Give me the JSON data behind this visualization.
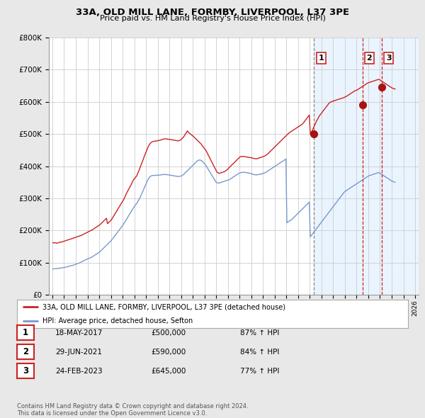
{
  "title": "33A, OLD MILL LANE, FORMBY, LIVERPOOL, L37 3PE",
  "subtitle": "Price paid vs. HM Land Registry's House Price Index (HPI)",
  "ylim": [
    0,
    800000
  ],
  "yticks": [
    0,
    100000,
    200000,
    300000,
    400000,
    500000,
    600000,
    700000,
    800000
  ],
  "ytick_labels": [
    "£0",
    "£100K",
    "£200K",
    "£300K",
    "£400K",
    "£500K",
    "£600K",
    "£700K",
    "£800K"
  ],
  "background_color": "#e8e8e8",
  "plot_bg_color": "#ffffff",
  "grid_color": "#cccccc",
  "red_line_color": "#cc2222",
  "blue_line_color": "#7799cc",
  "shade_color": "#ddeeff",
  "sale_marker_color": "#aa1111",
  "dashed_line_color_1": "#888888",
  "dashed_line_color_23": "#cc2222",
  "legend_label_red": "33A, OLD MILL LANE, FORMBY, LIVERPOOL, L37 3PE (detached house)",
  "legend_label_blue": "HPI: Average price, detached house, Sefton",
  "footnote": "Contains HM Land Registry data © Crown copyright and database right 2024.\nThis data is licensed under the Open Government Licence v3.0.",
  "sales": [
    {
      "num": 1,
      "date_label": "18-MAY-2017",
      "price": 500000,
      "pct": "87%",
      "x_year": 2017.37
    },
    {
      "num": 2,
      "date_label": "29-JUN-2021",
      "price": 590000,
      "pct": "84%",
      "x_year": 2021.49
    },
    {
      "num": 3,
      "date_label": "24-FEB-2023",
      "price": 645000,
      "pct": "77%",
      "x_year": 2023.15
    }
  ],
  "xlim": [
    1994.7,
    2026.3
  ],
  "hpi_x": [
    1995.04,
    1995.12,
    1995.21,
    1995.29,
    1995.37,
    1995.46,
    1995.54,
    1995.62,
    1995.71,
    1995.79,
    1995.87,
    1995.96,
    1996.04,
    1996.12,
    1996.21,
    1996.29,
    1996.37,
    1996.46,
    1996.54,
    1996.62,
    1996.71,
    1996.79,
    1996.87,
    1996.96,
    1997.04,
    1997.12,
    1997.21,
    1997.29,
    1997.37,
    1997.46,
    1997.54,
    1997.62,
    1997.71,
    1997.79,
    1997.87,
    1997.96,
    1998.04,
    1998.12,
    1998.21,
    1998.29,
    1998.37,
    1998.46,
    1998.54,
    1998.62,
    1998.71,
    1998.79,
    1998.87,
    1998.96,
    1999.04,
    1999.12,
    1999.21,
    1999.29,
    1999.37,
    1999.46,
    1999.54,
    1999.62,
    1999.71,
    1999.79,
    1999.87,
    1999.96,
    2000.04,
    2000.12,
    2000.21,
    2000.29,
    2000.37,
    2000.46,
    2000.54,
    2000.62,
    2000.71,
    2000.79,
    2000.87,
    2000.96,
    2001.04,
    2001.12,
    2001.21,
    2001.29,
    2001.37,
    2001.46,
    2001.54,
    2001.62,
    2001.71,
    2001.79,
    2001.87,
    2001.96,
    2002.04,
    2002.12,
    2002.21,
    2002.29,
    2002.37,
    2002.46,
    2002.54,
    2002.62,
    2002.71,
    2002.79,
    2002.87,
    2002.96,
    2003.04,
    2003.12,
    2003.21,
    2003.29,
    2003.37,
    2003.46,
    2003.54,
    2003.62,
    2003.71,
    2003.79,
    2003.87,
    2003.96,
    2004.04,
    2004.12,
    2004.21,
    2004.29,
    2004.37,
    2004.46,
    2004.54,
    2004.62,
    2004.71,
    2004.79,
    2004.87,
    2004.96,
    2005.04,
    2005.12,
    2005.21,
    2005.29,
    2005.37,
    2005.46,
    2005.54,
    2005.62,
    2005.71,
    2005.79,
    2005.87,
    2005.96,
    2006.04,
    2006.12,
    2006.21,
    2006.29,
    2006.37,
    2006.46,
    2006.54,
    2006.62,
    2006.71,
    2006.79,
    2006.87,
    2006.96,
    2007.04,
    2007.12,
    2007.21,
    2007.29,
    2007.37,
    2007.46,
    2007.54,
    2007.62,
    2007.71,
    2007.79,
    2007.87,
    2007.96,
    2008.04,
    2008.12,
    2008.21,
    2008.29,
    2008.37,
    2008.46,
    2008.54,
    2008.62,
    2008.71,
    2008.79,
    2008.87,
    2008.96,
    2009.04,
    2009.12,
    2009.21,
    2009.29,
    2009.37,
    2009.46,
    2009.54,
    2009.62,
    2009.71,
    2009.79,
    2009.87,
    2009.96,
    2010.04,
    2010.12,
    2010.21,
    2010.29,
    2010.37,
    2010.46,
    2010.54,
    2010.62,
    2010.71,
    2010.79,
    2010.87,
    2010.96,
    2011.04,
    2011.12,
    2011.21,
    2011.29,
    2011.37,
    2011.46,
    2011.54,
    2011.62,
    2011.71,
    2011.79,
    2011.87,
    2011.96,
    2012.04,
    2012.12,
    2012.21,
    2012.29,
    2012.37,
    2012.46,
    2012.54,
    2012.62,
    2012.71,
    2012.79,
    2012.87,
    2012.96,
    2013.04,
    2013.12,
    2013.21,
    2013.29,
    2013.37,
    2013.46,
    2013.54,
    2013.62,
    2013.71,
    2013.79,
    2013.87,
    2013.96,
    2014.04,
    2014.12,
    2014.21,
    2014.29,
    2014.37,
    2014.46,
    2014.54,
    2014.62,
    2014.71,
    2014.79,
    2014.87,
    2014.96,
    2015.04,
    2015.12,
    2015.21,
    2015.29,
    2015.37,
    2015.46,
    2015.54,
    2015.62,
    2015.71,
    2015.79,
    2015.87,
    2015.96,
    2016.04,
    2016.12,
    2016.21,
    2016.29,
    2016.37,
    2016.46,
    2016.54,
    2016.62,
    2016.71,
    2016.79,
    2016.87,
    2016.96,
    2017.04,
    2017.12,
    2017.21,
    2017.29,
    2017.37,
    2017.46,
    2017.54,
    2017.62,
    2017.71,
    2017.79,
    2017.87,
    2017.96,
    2018.04,
    2018.12,
    2018.21,
    2018.29,
    2018.37,
    2018.46,
    2018.54,
    2018.62,
    2018.71,
    2018.79,
    2018.87,
    2018.96,
    2019.04,
    2019.12,
    2019.21,
    2019.29,
    2019.37,
    2019.46,
    2019.54,
    2019.62,
    2019.71,
    2019.79,
    2019.87,
    2019.96,
    2020.04,
    2020.12,
    2020.21,
    2020.29,
    2020.37,
    2020.46,
    2020.54,
    2020.62,
    2020.71,
    2020.79,
    2020.87,
    2020.96,
    2021.04,
    2021.12,
    2021.21,
    2021.29,
    2021.37,
    2021.46,
    2021.54,
    2021.62,
    2021.71,
    2021.79,
    2021.87,
    2021.96,
    2022.04,
    2022.12,
    2022.21,
    2022.29,
    2022.37,
    2022.46,
    2022.54,
    2022.62,
    2022.71,
    2022.79,
    2022.87,
    2022.96,
    2023.04,
    2023.12,
    2023.21,
    2023.29,
    2023.37,
    2023.46,
    2023.54,
    2023.62,
    2023.71,
    2023.79,
    2023.87,
    2023.96,
    2024.04,
    2024.12,
    2024.21,
    2024.29
  ],
  "hpi_y": [
    80000,
    80500,
    81000,
    81500,
    81000,
    81500,
    82000,
    82000,
    83000,
    83500,
    84000,
    84500,
    85000,
    85500,
    86000,
    87000,
    88000,
    89000,
    90000,
    90500,
    91000,
    92000,
    93000,
    94000,
    95000,
    96000,
    97000,
    98500,
    100000,
    101500,
    103000,
    104500,
    106000,
    107500,
    109000,
    110500,
    112000,
    113000,
    114000,
    115500,
    117000,
    119000,
    121000,
    123000,
    125000,
    127000,
    129000,
    131000,
    133000,
    136000,
    139000,
    142000,
    145000,
    148000,
    151000,
    154000,
    157000,
    160000,
    163000,
    166000,
    169000,
    173000,
    177000,
    181000,
    185000,
    189000,
    193000,
    197000,
    201000,
    205000,
    209000,
    213000,
    217000,
    222000,
    227000,
    232000,
    237000,
    242000,
    247000,
    252000,
    257000,
    262000,
    267000,
    272000,
    276000,
    280000,
    284000,
    289000,
    294000,
    300000,
    306000,
    313000,
    320000,
    327000,
    334000,
    341000,
    348000,
    355000,
    361000,
    365000,
    368000,
    370000,
    371000,
    371000,
    371000,
    371500,
    371500,
    372000,
    372000,
    372000,
    372500,
    373000,
    373500,
    374000,
    374000,
    374000,
    374000,
    373500,
    373000,
    372500,
    372000,
    371500,
    371000,
    370500,
    370000,
    369500,
    369000,
    368500,
    368000,
    368000,
    368500,
    369000,
    370000,
    372000,
    374000,
    377000,
    380000,
    383000,
    386000,
    389000,
    392000,
    395000,
    398000,
    401000,
    404000,
    407000,
    410000,
    413000,
    416000,
    418000,
    419000,
    419000,
    418000,
    416000,
    413000,
    410000,
    406000,
    402000,
    397000,
    392000,
    387000,
    382000,
    377000,
    372000,
    367000,
    362000,
    357000,
    352000,
    349000,
    348000,
    347000,
    348000,
    349000,
    350000,
    351000,
    352000,
    353000,
    354000,
    355000,
    356000,
    357000,
    358000,
    360000,
    362000,
    364000,
    366000,
    368000,
    370000,
    372000,
    374000,
    376000,
    378000,
    379000,
    380000,
    380500,
    381000,
    381000,
    380500,
    380000,
    379500,
    379000,
    378500,
    378000,
    377500,
    376000,
    375000,
    374000,
    373500,
    373000,
    373000,
    373500,
    374000,
    374500,
    375000,
    376000,
    377000,
    378000,
    379000,
    380000,
    382000,
    384000,
    386000,
    388000,
    390000,
    392000,
    394000,
    396000,
    398000,
    400000,
    402000,
    404000,
    406000,
    408000,
    410000,
    412000,
    414000,
    416000,
    418000,
    420000,
    422000,
    224000,
    226000,
    228000,
    230000,
    232000,
    234000,
    237000,
    240000,
    243000,
    246000,
    249000,
    252000,
    255000,
    258000,
    261000,
    264000,
    267000,
    270000,
    273000,
    276000,
    279000,
    282000,
    285000,
    288000,
    180000,
    184000,
    188000,
    192000,
    196000,
    200000,
    204000,
    208000,
    212000,
    216000,
    220000,
    224000,
    228000,
    232000,
    236000,
    240000,
    244000,
    248000,
    252000,
    256000,
    260000,
    264000,
    268000,
    272000,
    276000,
    280000,
    284000,
    288000,
    292000,
    296000,
    300000,
    304000,
    308000,
    312000,
    316000,
    320000,
    322000,
    324000,
    326000,
    328000,
    330000,
    332000,
    334000,
    336000,
    338000,
    340000,
    342000,
    344000,
    346000,
    348000,
    350000,
    352000,
    354000,
    356000,
    358000,
    360000,
    362000,
    364000,
    366000,
    368000,
    370000,
    371000,
    372000,
    373000,
    374000,
    375000,
    376000,
    377000,
    378000,
    379000,
    380000,
    379000,
    377000,
    375000,
    373000,
    371000,
    369000,
    367000,
    365000,
    363000,
    361000,
    359000,
    357000,
    355000,
    353000,
    352000,
    351000,
    350000
  ],
  "red_x": [
    1995.04,
    1995.12,
    1995.21,
    1995.29,
    1995.37,
    1995.46,
    1995.54,
    1995.62,
    1995.71,
    1995.79,
    1995.87,
    1995.96,
    1996.04,
    1996.12,
    1996.21,
    1996.29,
    1996.37,
    1996.46,
    1996.54,
    1996.62,
    1996.71,
    1996.79,
    1996.87,
    1996.96,
    1997.04,
    1997.12,
    1997.21,
    1997.29,
    1997.37,
    1997.46,
    1997.54,
    1997.62,
    1997.71,
    1997.79,
    1997.87,
    1997.96,
    1998.04,
    1998.12,
    1998.21,
    1998.29,
    1998.37,
    1998.46,
    1998.54,
    1998.62,
    1998.71,
    1998.79,
    1998.87,
    1998.96,
    1999.04,
    1999.12,
    1999.21,
    1999.29,
    1999.37,
    1999.46,
    1999.54,
    1999.62,
    1999.71,
    1999.79,
    1999.87,
    1999.96,
    2000.04,
    2000.12,
    2000.21,
    2000.29,
    2000.37,
    2000.46,
    2000.54,
    2000.62,
    2000.71,
    2000.79,
    2000.87,
    2000.96,
    2001.04,
    2001.12,
    2001.21,
    2001.29,
    2001.37,
    2001.46,
    2001.54,
    2001.62,
    2001.71,
    2001.79,
    2001.87,
    2001.96,
    2002.04,
    2002.12,
    2002.21,
    2002.29,
    2002.37,
    2002.46,
    2002.54,
    2002.62,
    2002.71,
    2002.79,
    2002.87,
    2002.96,
    2003.04,
    2003.12,
    2003.21,
    2003.29,
    2003.37,
    2003.46,
    2003.54,
    2003.62,
    2003.71,
    2003.79,
    2003.87,
    2003.96,
    2004.04,
    2004.12,
    2004.21,
    2004.29,
    2004.37,
    2004.46,
    2004.54,
    2004.62,
    2004.71,
    2004.79,
    2004.87,
    2004.96,
    2005.04,
    2005.12,
    2005.21,
    2005.29,
    2005.37,
    2005.46,
    2005.54,
    2005.62,
    2005.71,
    2005.79,
    2005.87,
    2005.96,
    2006.04,
    2006.12,
    2006.21,
    2006.29,
    2006.37,
    2006.46,
    2006.54,
    2006.62,
    2006.71,
    2006.79,
    2006.87,
    2006.96,
    2007.04,
    2007.12,
    2007.21,
    2007.29,
    2007.37,
    2007.46,
    2007.54,
    2007.62,
    2007.71,
    2007.79,
    2007.87,
    2007.96,
    2008.04,
    2008.12,
    2008.21,
    2008.29,
    2008.37,
    2008.46,
    2008.54,
    2008.62,
    2008.71,
    2008.79,
    2008.87,
    2008.96,
    2009.04,
    2009.12,
    2009.21,
    2009.29,
    2009.37,
    2009.46,
    2009.54,
    2009.62,
    2009.71,
    2009.79,
    2009.87,
    2009.96,
    2010.04,
    2010.12,
    2010.21,
    2010.29,
    2010.37,
    2010.46,
    2010.54,
    2010.62,
    2010.71,
    2010.79,
    2010.87,
    2010.96,
    2011.04,
    2011.12,
    2011.21,
    2011.29,
    2011.37,
    2011.46,
    2011.54,
    2011.62,
    2011.71,
    2011.79,
    2011.87,
    2011.96,
    2012.04,
    2012.12,
    2012.21,
    2012.29,
    2012.37,
    2012.46,
    2012.54,
    2012.62,
    2012.71,
    2012.79,
    2012.87,
    2012.96,
    2013.04,
    2013.12,
    2013.21,
    2013.29,
    2013.37,
    2013.46,
    2013.54,
    2013.62,
    2013.71,
    2013.79,
    2013.87,
    2013.96,
    2014.04,
    2014.12,
    2014.21,
    2014.29,
    2014.37,
    2014.46,
    2014.54,
    2014.62,
    2014.71,
    2014.79,
    2014.87,
    2014.96,
    2015.04,
    2015.12,
    2015.21,
    2015.29,
    2015.37,
    2015.46,
    2015.54,
    2015.62,
    2015.71,
    2015.79,
    2015.87,
    2015.96,
    2016.04,
    2016.12,
    2016.21,
    2016.29,
    2016.37,
    2016.46,
    2016.54,
    2016.62,
    2016.71,
    2016.79,
    2016.87,
    2016.96,
    2017.04,
    2017.12,
    2017.21,
    2017.29,
    2017.37,
    2017.46,
    2017.54,
    2017.62,
    2017.71,
    2017.79,
    2017.87,
    2017.96,
    2018.04,
    2018.12,
    2018.21,
    2018.29,
    2018.37,
    2018.46,
    2018.54,
    2018.62,
    2018.71,
    2018.79,
    2018.87,
    2018.96,
    2019.04,
    2019.12,
    2019.21,
    2019.29,
    2019.37,
    2019.46,
    2019.54,
    2019.62,
    2019.71,
    2019.79,
    2019.87,
    2019.96,
    2020.04,
    2020.12,
    2020.21,
    2020.29,
    2020.37,
    2020.46,
    2020.54,
    2020.62,
    2020.71,
    2020.79,
    2020.87,
    2020.96,
    2021.04,
    2021.12,
    2021.21,
    2021.29,
    2021.37,
    2021.46,
    2021.54,
    2021.62,
    2021.71,
    2021.79,
    2021.87,
    2021.96,
    2022.04,
    2022.12,
    2022.21,
    2022.29,
    2022.37,
    2022.46,
    2022.54,
    2022.62,
    2022.71,
    2022.79,
    2022.87,
    2022.96,
    2023.04,
    2023.12,
    2023.21,
    2023.29,
    2023.37,
    2023.46,
    2023.54,
    2023.62,
    2023.71,
    2023.79,
    2023.87,
    2023.96,
    2024.04,
    2024.12,
    2024.21,
    2024.29
  ],
  "red_y": [
    162000,
    161000,
    162000,
    161000,
    160000,
    161000,
    162000,
    163000,
    163500,
    164000,
    165000,
    166000,
    167000,
    168000,
    169000,
    170000,
    171000,
    172000,
    173000,
    174000,
    175000,
    176000,
    177000,
    178000,
    179000,
    180000,
    181000,
    182000,
    183000,
    184500,
    186000,
    187500,
    189000,
    190500,
    192000,
    193500,
    195000,
    196500,
    198000,
    199500,
    201000,
    203000,
    205000,
    207000,
    209000,
    211000,
    213000,
    215000,
    217000,
    220000,
    223000,
    226000,
    229000,
    232000,
    235000,
    238000,
    221000,
    224000,
    227000,
    230000,
    233000,
    238000,
    243000,
    248000,
    253000,
    258000,
    263000,
    268000,
    273000,
    278000,
    283000,
    288000,
    293000,
    298000,
    305000,
    312000,
    318000,
    324000,
    329000,
    335000,
    341000,
    347000,
    353000,
    359000,
    362000,
    366000,
    370000,
    377000,
    384000,
    392000,
    400000,
    408000,
    416000,
    424000,
    432000,
    440000,
    447000,
    455000,
    462000,
    467000,
    471000,
    474000,
    476000,
    477000,
    477500,
    478000,
    478500,
    479000,
    479500,
    480000,
    481000,
    482000,
    483000,
    484000,
    484500,
    485000,
    485000,
    484500,
    484000,
    483500,
    483000,
    482500,
    482000,
    481500,
    481000,
    480500,
    480000,
    479500,
    479000,
    479000,
    480000,
    482000,
    484000,
    487000,
    491000,
    495000,
    500000,
    505000,
    510000,
    505000,
    503000,
    500000,
    498000,
    495000,
    493000,
    490000,
    487000,
    484000,
    481000,
    478000,
    475000,
    472000,
    469000,
    465000,
    461000,
    457000,
    453000,
    449000,
    443000,
    437000,
    431000,
    425000,
    419000,
    413000,
    407000,
    401000,
    395000,
    389000,
    383000,
    380000,
    378000,
    378000,
    379000,
    380000,
    381000,
    382000,
    383000,
    385000,
    387000,
    390000,
    393000,
    396000,
    399000,
    402000,
    405000,
    408000,
    411000,
    414000,
    417000,
    420000,
    423000,
    426000,
    429000,
    430000,
    430000,
    430000,
    430000,
    429500,
    429000,
    428500,
    428000,
    427500,
    427000,
    426500,
    426000,
    425000,
    424000,
    423500,
    423000,
    423000,
    424000,
    425000,
    426000,
    427000,
    428000,
    429000,
    430000,
    431000,
    433000,
    435000,
    437000,
    440000,
    443000,
    446000,
    449000,
    452000,
    455000,
    458000,
    461000,
    464000,
    467000,
    470000,
    473000,
    476000,
    479000,
    482000,
    485000,
    488000,
    491000,
    494000,
    497000,
    500000,
    503000,
    505000,
    507000,
    509000,
    511000,
    513000,
    515000,
    517000,
    519000,
    521000,
    523000,
    525000,
    527000,
    529000,
    531000,
    535000,
    539000,
    543000,
    547000,
    551000,
    555000,
    559000,
    500000,
    505000,
    511000,
    517000,
    524000,
    531000,
    538000,
    543000,
    549000,
    555000,
    559000,
    563000,
    567000,
    571000,
    575000,
    579000,
    583000,
    587000,
    591000,
    595000,
    598000,
    600000,
    601000,
    602000,
    603000,
    604000,
    605000,
    606000,
    607000,
    608000,
    609000,
    610000,
    611000,
    612000,
    613000,
    614000,
    616000,
    617000,
    619000,
    621000,
    623000,
    625000,
    627000,
    629000,
    631000,
    633000,
    635000,
    636000,
    637000,
    639000,
    641000,
    643000,
    645000,
    647000,
    649000,
    651000,
    653000,
    655000,
    657000,
    659000,
    660000,
    661000,
    662000,
    663000,
    664000,
    665000,
    666000,
    667000,
    668000,
    669000,
    670000,
    669000,
    667000,
    665000,
    663000,
    661000,
    659000,
    657000,
    655000,
    653000,
    651000,
    649000,
    647000,
    645000,
    643000,
    642000,
    641000,
    640000
  ]
}
